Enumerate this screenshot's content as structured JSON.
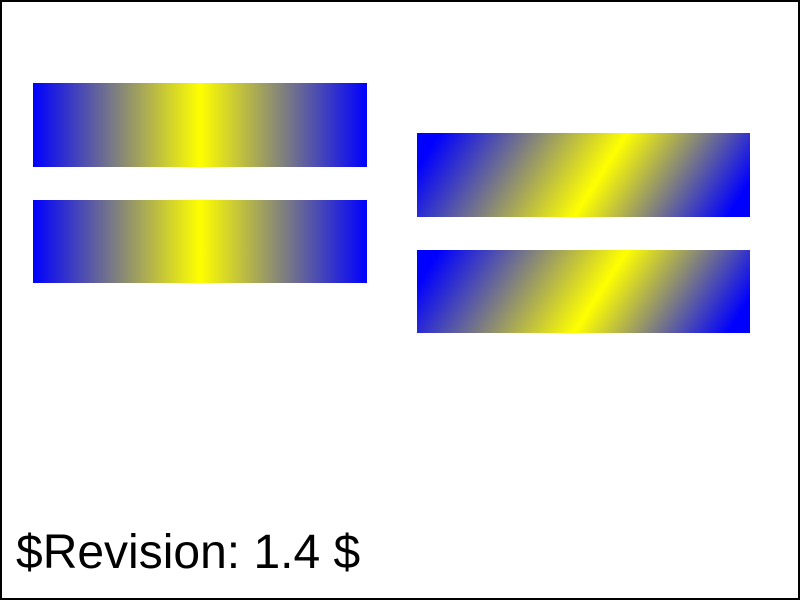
{
  "revision_label": "$Revision: 1.4 $",
  "colors": {
    "border": "#000000",
    "gradient_edge": "#0000ff",
    "gradient_center": "#ffff00",
    "background": "#ffffff"
  }
}
